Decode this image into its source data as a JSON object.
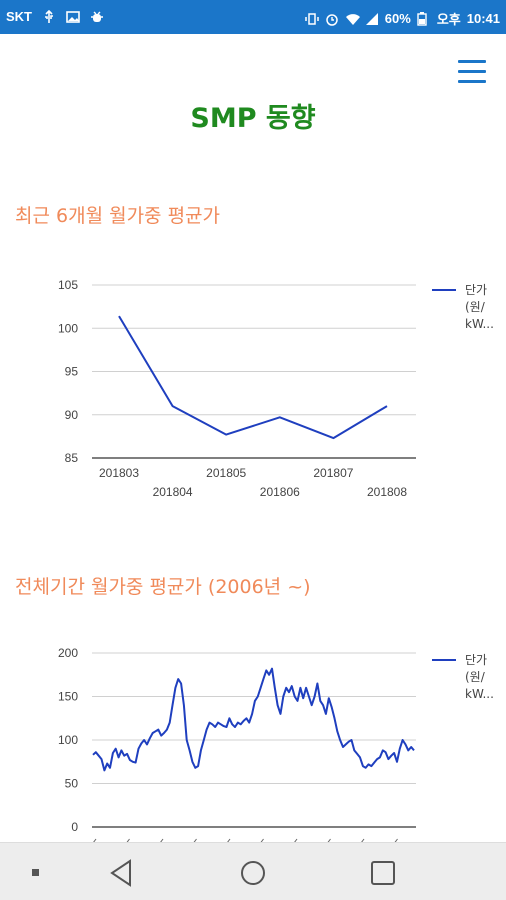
{
  "status": {
    "carrier": "SKT",
    "battery": "60%",
    "ampm": "오후",
    "time": "10:41"
  },
  "page": {
    "title": "SMP 동향"
  },
  "sections": {
    "recent_title": "최근 6개월 월가중 평균가",
    "all_title": "전체기간 월가중 평균가 (2006년 ~)"
  },
  "chart_data": [
    {
      "type": "line",
      "title": "최근 6개월 월가중 평균가",
      "categories": [
        "201803",
        "201804",
        "201805",
        "201806",
        "201807",
        "201808"
      ],
      "series": [
        {
          "name": "단가(원/kW...",
          "values": [
            101.4,
            91.0,
            87.7,
            89.7,
            87.3,
            91.0
          ],
          "color": "#1f3fbf"
        }
      ],
      "ylim": [
        85,
        105
      ],
      "yticks": [
        85,
        90,
        95,
        100,
        105
      ],
      "legend": [
        "단가",
        "(원/",
        "kW..."
      ],
      "legend_position": "right",
      "grid": true
    },
    {
      "type": "line",
      "title": "전체기간 월가중 평균가 (2006년 ~)",
      "series": [
        {
          "name": "단가(원/kW...",
          "color": "#1f3fbf",
          "values": [
            83,
            86,
            82,
            78,
            65,
            73,
            68,
            85,
            90,
            80,
            88,
            82,
            84,
            77,
            75,
            74,
            90,
            96,
            100,
            95,
            102,
            108,
            110,
            112,
            105,
            108,
            112,
            120,
            140,
            160,
            170,
            165,
            140,
            100,
            88,
            75,
            68,
            70,
            88,
            100,
            112,
            120,
            118,
            115,
            120,
            118,
            116,
            115,
            125,
            118,
            115,
            120,
            118,
            122,
            125,
            120,
            130,
            145,
            150,
            160,
            170,
            180,
            175,
            182,
            160,
            140,
            130,
            150,
            160,
            155,
            162,
            150,
            145,
            160,
            148,
            160,
            150,
            140,
            150,
            165,
            145,
            140,
            130,
            148,
            138,
            125,
            110,
            100,
            92,
            95,
            98,
            100,
            88,
            84,
            80,
            70,
            68,
            72,
            70,
            74,
            78,
            80,
            88,
            86,
            78,
            82,
            85,
            75,
            90,
            100,
            95,
            88,
            92,
            88
          ]
        }
      ],
      "ylim": [
        0,
        200
      ],
      "yticks": [
        0,
        50,
        100,
        150,
        200
      ],
      "legend": [
        "단가",
        "(원/",
        "kW..."
      ],
      "legend_position": "right",
      "grid": true
    }
  ],
  "colors": {
    "status_bar": "#1b76c9",
    "title_green": "#1f8a1f",
    "section_orange": "#f08a5a",
    "line_blue": "#1f3fbf"
  }
}
